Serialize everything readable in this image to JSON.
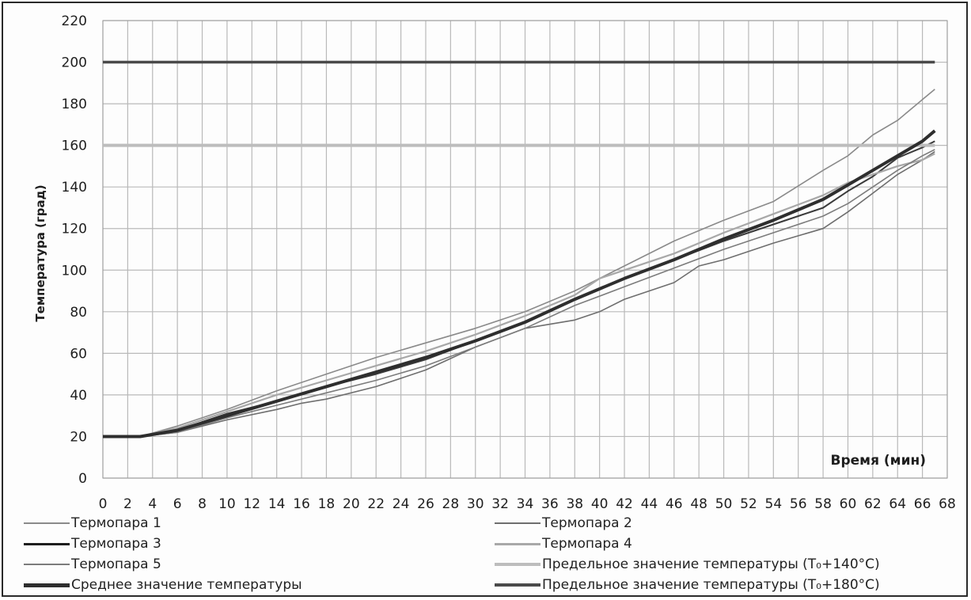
{
  "chart_data": {
    "type": "line",
    "title": "",
    "xlabel": "Время (мин)",
    "ylabel": "Температура (град)",
    "xlim": [
      0,
      68
    ],
    "ylim": [
      0,
      220
    ],
    "xticks": [
      "0",
      "2",
      "4",
      "6",
      "8",
      "10",
      "12",
      "14",
      "16",
      "18",
      "20",
      "22",
      "24",
      "26",
      "28",
      "30",
      "32",
      "34",
      "36",
      "38",
      "40",
      "42",
      "44",
      "46",
      "48",
      "50",
      "52",
      "54",
      "56",
      "58",
      "60",
      "62",
      "64",
      "66",
      "68"
    ],
    "yticks": [
      "0",
      "20",
      "40",
      "60",
      "80",
      "100",
      "120",
      "140",
      "160",
      "180",
      "200",
      "220"
    ],
    "grid": true,
    "legend_position": "bottom",
    "series": [
      {
        "name": "Термопара 1",
        "color": "#8a8a8a",
        "x": [
          0,
          3,
          6,
          10,
          14,
          18,
          22,
          26,
          30,
          34,
          38,
          42,
          46,
          50,
          54,
          58,
          60,
          62,
          64,
          66,
          67
        ],
        "y": [
          20,
          20,
          25,
          33,
          42,
          50,
          58,
          65,
          72,
          80,
          90,
          102,
          114,
          124,
          133,
          148,
          155,
          165,
          172,
          182,
          187
        ]
      },
      {
        "name": "Термопара 2",
        "color": "#6e6e6e",
        "x": [
          0,
          3,
          6,
          10,
          14,
          16,
          18,
          22,
          26,
          30,
          34,
          38,
          40,
          42,
          46,
          48,
          50,
          54,
          58,
          60,
          62,
          64,
          66,
          67
        ],
        "y": [
          20,
          20,
          22,
          28,
          33,
          36,
          38,
          44,
          52,
          63,
          72,
          76,
          80,
          86,
          94,
          102,
          105,
          113,
          120,
          128,
          137,
          146,
          153,
          157
        ]
      },
      {
        "name": "Термопара 3",
        "color": "#3a3a3a",
        "x": [
          0,
          3,
          6,
          10,
          14,
          18,
          22,
          26,
          30,
          34,
          38,
          42,
          46,
          50,
          54,
          56,
          58,
          60,
          62,
          64,
          66,
          67
        ],
        "y": [
          20,
          20,
          23,
          31,
          37,
          44,
          50,
          57,
          66,
          75,
          86,
          96,
          105,
          114,
          122,
          126,
          130,
          138,
          145,
          154,
          159,
          162
        ]
      },
      {
        "name": "Термопара 4",
        "color": "#a8a8a8",
        "x": [
          0,
          3,
          6,
          10,
          14,
          18,
          22,
          26,
          30,
          34,
          38,
          40,
          42,
          46,
          50,
          54,
          58,
          60,
          62,
          64,
          66,
          67
        ],
        "y": [
          20,
          20,
          24,
          32,
          40,
          47,
          54,
          61,
          69,
          78,
          88,
          96,
          100,
          108,
          118,
          127,
          136,
          142,
          146,
          150,
          153,
          156
        ]
      },
      {
        "name": "Термопара 5",
        "color": "#7c7c7c",
        "x": [
          0,
          3,
          6,
          10,
          14,
          18,
          22,
          26,
          30,
          34,
          38,
          42,
          46,
          50,
          54,
          58,
          60,
          62,
          64,
          66,
          67
        ],
        "y": [
          20,
          20,
          22,
          29,
          35,
          41,
          47,
          54,
          63,
          72,
          83,
          92,
          101,
          110,
          118,
          126,
          132,
          140,
          148,
          155,
          158
        ]
      },
      {
        "name": "Предельное значение температуры (T₀+140°C)",
        "color": "#bdbdbd",
        "x": [
          0,
          67
        ],
        "y": [
          160,
          160
        ]
      },
      {
        "name": "Среднее значение температуры",
        "color": "#2e2e2e",
        "x": [
          0,
          3,
          6,
          10,
          14,
          18,
          22,
          26,
          30,
          34,
          38,
          42,
          46,
          50,
          54,
          58,
          60,
          62,
          64,
          66,
          67
        ],
        "y": [
          20,
          20,
          23,
          30,
          37,
          44,
          51,
          58,
          66,
          75,
          86,
          96,
          105,
          115,
          124,
          134,
          141,
          148,
          155,
          162,
          167
        ]
      },
      {
        "name": "Предельное значение температуры (T₀+180°C)",
        "color": "#4a4a4a",
        "x": [
          0,
          67
        ],
        "y": [
          200,
          200
        ]
      }
    ]
  },
  "legend": [
    {
      "label": "Термопара 1",
      "color": "#8a8a8a",
      "weight": 2
    },
    {
      "label": "Термопара 2",
      "color": "#6e6e6e",
      "weight": 2
    },
    {
      "label": "Термопара 3",
      "color": "#1e1e1e",
      "weight": 3
    },
    {
      "label": "Термопара 4",
      "color": "#a8a8a8",
      "weight": 3
    },
    {
      "label": "Термопара 5",
      "color": "#7c7c7c",
      "weight": 2
    },
    {
      "label": "Предельное значение температуры (T₀+140°C)",
      "color": "#bdbdbd",
      "weight": 4
    },
    {
      "label": "Среднее значение температуры",
      "color": "#2e2e2e",
      "weight": 5
    },
    {
      "label": "Предельное значение температуры (T₀+180°C)",
      "color": "#4a4a4a",
      "weight": 4
    }
  ]
}
